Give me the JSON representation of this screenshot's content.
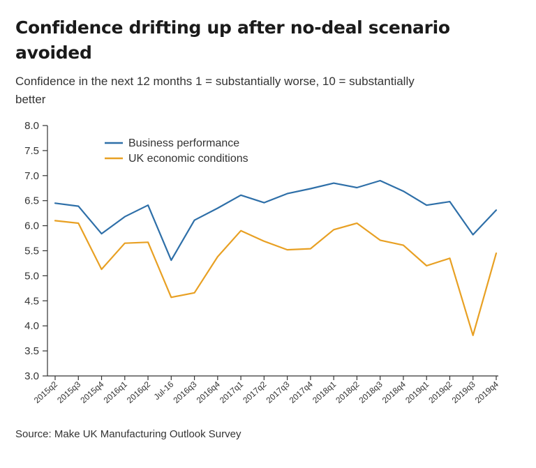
{
  "title": "Confidence drifting up after no-deal scenario avoided",
  "subtitle": "Confidence in the next 12 months 1 = substantially worse, 10 = substantially better",
  "source": "Source: Make UK Manufacturing Outlook Survey",
  "colors": {
    "business": "#2e6fa8",
    "uk": "#e8a023",
    "axis": "#333333"
  },
  "chart_data": {
    "type": "line",
    "title": "Confidence drifting up after no-deal scenario avoided",
    "subtitle": "Confidence in the next 12 months 1 = substantially worse, 10 = substantially better",
    "xlabel": "",
    "ylabel": "",
    "ylim": [
      3.0,
      8.0
    ],
    "yticks": [
      "3.0",
      "3.5",
      "4.0",
      "4.5",
      "5.0",
      "5.5",
      "6.0",
      "6.5",
      "7.0",
      "7.5",
      "8.0"
    ],
    "grid": false,
    "legend_position": "top-left",
    "categories": [
      "2015q2",
      "2015q3",
      "2015q4",
      "2016q1",
      "2016q2",
      "Jul-16",
      "2016q3",
      "2016q4",
      "2017q1",
      "2017q2",
      "2017q3",
      "2017q4",
      "2018q1",
      "2018q2",
      "2018q3",
      "2018q4",
      "2019q1",
      "2019q2",
      "2019q3",
      "2019q4"
    ],
    "series": [
      {
        "name": "Business performance",
        "color": "#2e6fa8",
        "values": [
          6.45,
          6.39,
          5.84,
          6.18,
          6.41,
          5.31,
          6.11,
          6.35,
          6.61,
          6.46,
          6.64,
          6.74,
          6.85,
          6.76,
          6.9,
          6.69,
          6.41,
          6.48,
          5.82,
          6.31
        ]
      },
      {
        "name": "UK economic conditions",
        "color": "#e8a023",
        "values": [
          6.1,
          6.05,
          5.13,
          5.65,
          5.67,
          4.57,
          4.66,
          5.38,
          5.9,
          5.69,
          5.52,
          5.54,
          5.92,
          6.05,
          5.71,
          5.61,
          5.2,
          5.35,
          3.81,
          5.45
        ]
      }
    ]
  }
}
